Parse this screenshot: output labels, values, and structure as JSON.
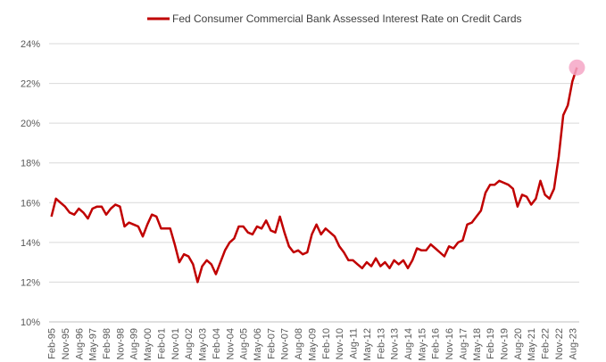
{
  "chart_data": {
    "type": "line",
    "ylim": [
      10,
      24
    ],
    "y_ticks": [
      10,
      12,
      14,
      16,
      18,
      20,
      22,
      24
    ],
    "y_tick_labels": [
      "10%",
      "12%",
      "14%",
      "16%",
      "18%",
      "20%",
      "22%",
      "24%"
    ],
    "x_tick_labels": [
      "Feb-95",
      "Nov-95",
      "Aug-96",
      "May-97",
      "Feb-98",
      "Nov-98",
      "Aug-99",
      "May-00",
      "Feb-01",
      "Nov-01",
      "Aug-02",
      "May-03",
      "Feb-04",
      "Nov-04",
      "Aug-05",
      "May-06",
      "Feb-07",
      "Nov-07",
      "Aug-08",
      "May-09",
      "Feb-10",
      "Nov-10",
      "Aug-11",
      "May-12",
      "Feb-13",
      "Nov-13",
      "Aug-14",
      "May-15",
      "Feb-16",
      "Nov-16",
      "Aug-17",
      "May-18",
      "Feb-19",
      "Nov-19",
      "Aug-20",
      "May-21",
      "Feb-22",
      "Nov-22",
      "Aug-23"
    ],
    "grid": true,
    "legend_position": "top-center",
    "series": [
      {
        "name": "Fed Consumer Commercial Bank Assessed Interest Rate on Credit Cards",
        "color": "#c00000",
        "values": [
          15.3,
          16.2,
          16.0,
          15.8,
          15.5,
          15.4,
          15.7,
          15.5,
          15.2,
          15.7,
          15.8,
          15.8,
          15.4,
          15.7,
          15.9,
          15.8,
          14.8,
          15.0,
          14.9,
          14.8,
          14.3,
          14.9,
          15.4,
          15.3,
          14.7,
          14.7,
          14.7,
          13.9,
          13.0,
          13.4,
          13.3,
          12.9,
          12.0,
          12.8,
          13.1,
          12.9,
          12.4,
          13.0,
          13.6,
          14.0,
          14.2,
          14.8,
          14.8,
          14.5,
          14.4,
          14.8,
          14.7,
          15.1,
          14.6,
          14.5,
          15.3,
          14.5,
          13.8,
          13.5,
          13.6,
          13.4,
          13.5,
          14.4,
          14.9,
          14.4,
          14.7,
          14.5,
          14.3,
          13.8,
          13.5,
          13.1,
          13.1,
          12.9,
          12.7,
          13.0,
          12.8,
          13.2,
          12.8,
          13.0,
          12.7,
          13.1,
          12.9,
          13.1,
          12.7,
          13.1,
          13.7,
          13.6,
          13.6,
          13.9,
          13.7,
          13.5,
          13.3,
          13.8,
          13.7,
          14.0,
          14.1,
          14.9,
          15.0,
          15.3,
          15.6,
          16.5,
          16.9,
          16.9,
          17.1,
          17.0,
          16.9,
          16.7,
          15.8,
          16.4,
          16.3,
          15.9,
          16.2,
          17.1,
          16.4,
          16.2,
          16.7,
          18.3,
          20.4,
          20.9,
          22.1,
          22.8
        ],
        "end_marker": true
      }
    ]
  }
}
